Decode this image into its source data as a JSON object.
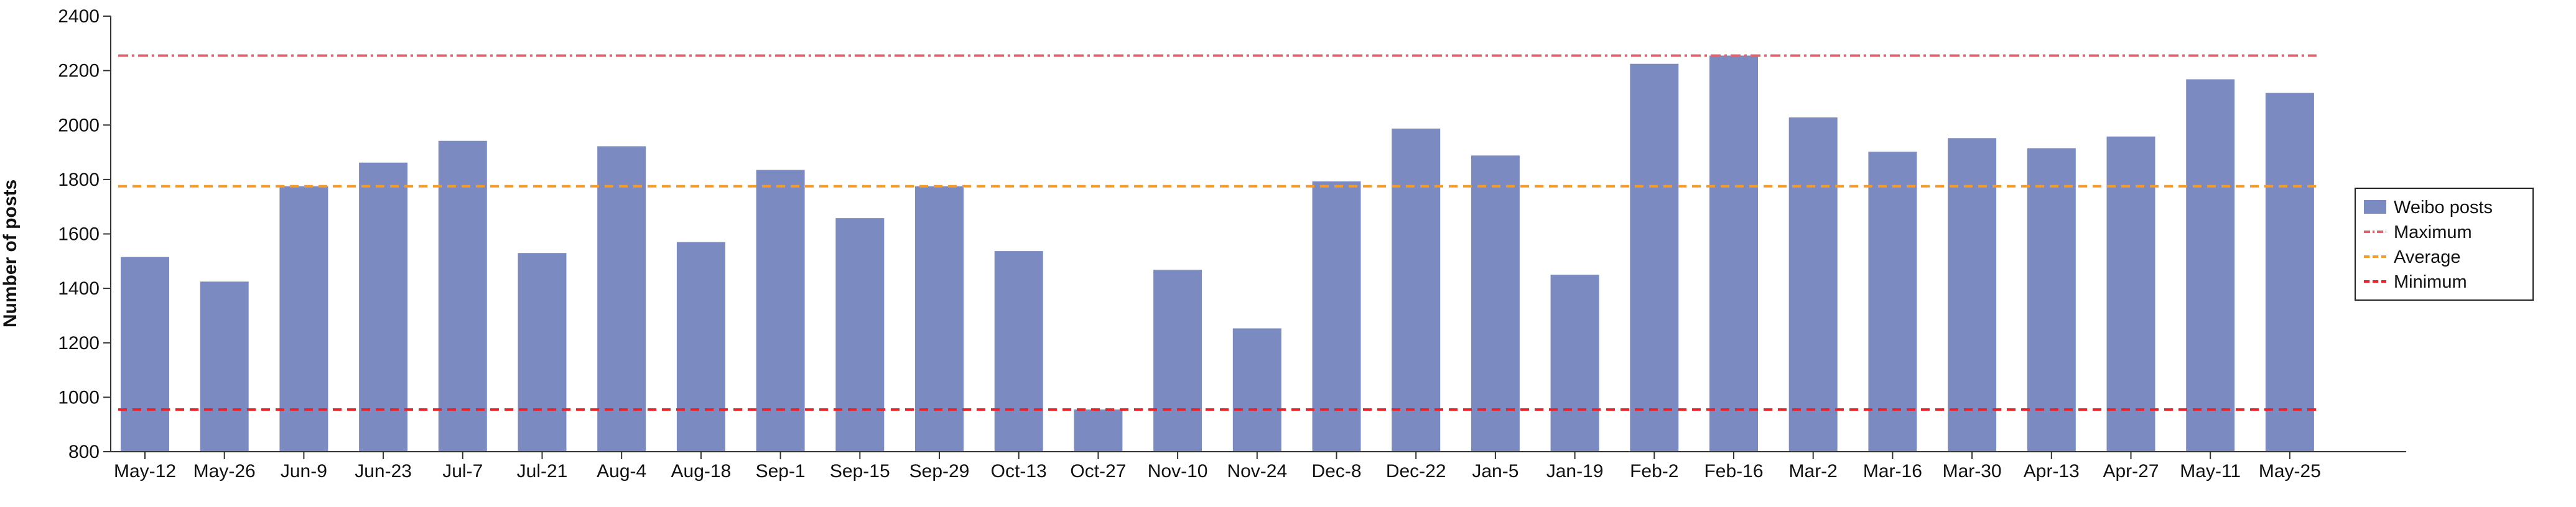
{
  "chart_data": {
    "type": "bar",
    "title": "",
    "xlabel": "",
    "ylabel": "Number of posts",
    "ylim": [
      800,
      2400
    ],
    "yticks": [
      800,
      1000,
      1200,
      1400,
      1600,
      1800,
      2000,
      2200,
      2400
    ],
    "grid": false,
    "legend_position": "right",
    "categories": [
      "May-12",
      "May-26",
      "Jun-9",
      "Jun-23",
      "Jul-7",
      "Jul-21",
      "Aug-4",
      "Aug-18",
      "Sep-1",
      "Sep-15",
      "Sep-29",
      "Oct-13",
      "Oct-27",
      "Nov-10",
      "Nov-24",
      "Dec-8",
      "Dec-22",
      "Jan-5",
      "Jan-19",
      "Feb-2",
      "Feb-16",
      "Mar-2",
      "Mar-16",
      "Mar-30",
      "Apr-13",
      "Apr-27",
      "May-11",
      "May-25"
    ],
    "series": [
      {
        "name": "Weibo posts",
        "type": "bar",
        "color": "#7b8bc2",
        "values": [
          1515,
          1425,
          1775,
          1862,
          1942,
          1530,
          1922,
          1570,
          1835,
          1658,
          1775,
          1537,
          955,
          1468,
          1253,
          1793,
          1987,
          1888,
          1450,
          2225,
          2255,
          2028,
          1902,
          1952,
          1915,
          1958,
          2168,
          2118
        ]
      },
      {
        "name": "Maximum",
        "type": "reference_line",
        "style": "dashdot",
        "color": "#d9666f",
        "value": 2255
      },
      {
        "name": "Average",
        "type": "reference_line",
        "style": "dashed",
        "color": "#f39c2b",
        "value": 1775
      },
      {
        "name": "Minimum",
        "type": "reference_line",
        "style": "dashed",
        "color": "#e8242a",
        "value": 955
      }
    ]
  }
}
